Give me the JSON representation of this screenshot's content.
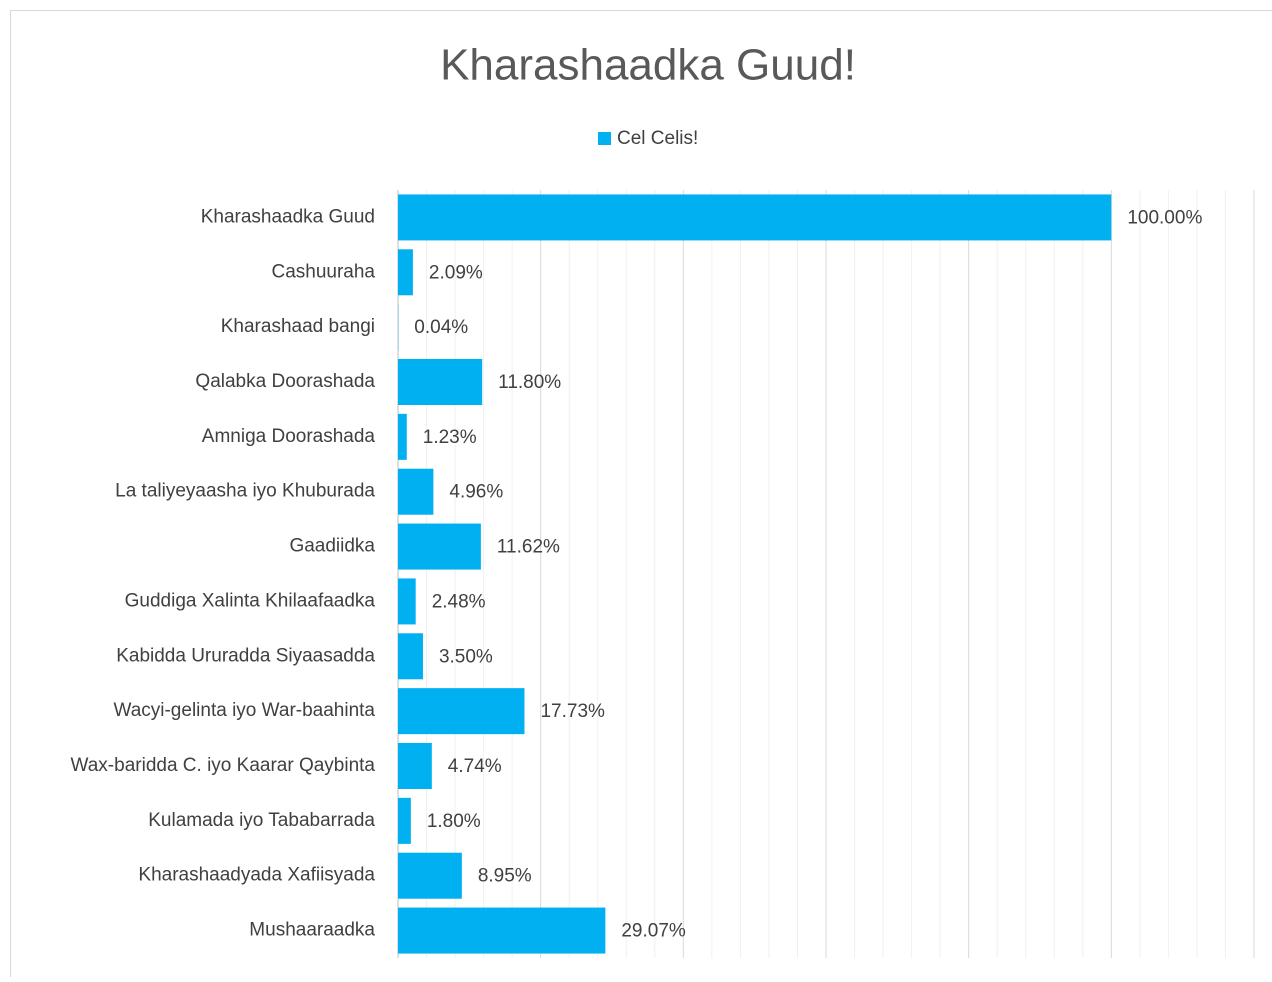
{
  "chart_data": {
    "type": "barh",
    "title": "Kharashaadka Guud!",
    "categories": [
      "Kharashaadka Guud",
      "Cashuuraha",
      "Kharashaad bangi",
      "Qalabka Doorashada",
      "Amniga Doorashada",
      "La taliyeyaasha iyo Khuburada",
      "Gaadiidka",
      "Guddiga Xalinta Khilaafaadka",
      "Kabidda Ururadda Siyaasadda",
      "Wacyi-gelinta iyo War-baahinta",
      "Wax-baridda C. iyo Kaarar Qaybinta",
      "Kulamada iyo Tababarrada",
      "Kharashaadyada Xafiisyada",
      "Mushaaraadka"
    ],
    "series": [
      {
        "name": "Cel Celis!",
        "color": "#00b0f0",
        "values": [
          100,
          2.09,
          0.04,
          11.8,
          1.23,
          4.96,
          11.62,
          2.48,
          3.5,
          17.73,
          4.74,
          1.8,
          8.95,
          29.07
        ],
        "value_labels": [
          "100.00%",
          "2.09%",
          "0.04%",
          "11.80%",
          "1.23%",
          "4.96%",
          "11.62%",
          "2.48%",
          "3.50%",
          "17.73%",
          "4.74%",
          "1.80%",
          "8.95%",
          "29.07%"
        ]
      }
    ],
    "xlim": [
      0,
      120
    ],
    "xticks": [
      0,
      20,
      40,
      60,
      80,
      100,
      120
    ],
    "grid": true,
    "legend": "top"
  }
}
